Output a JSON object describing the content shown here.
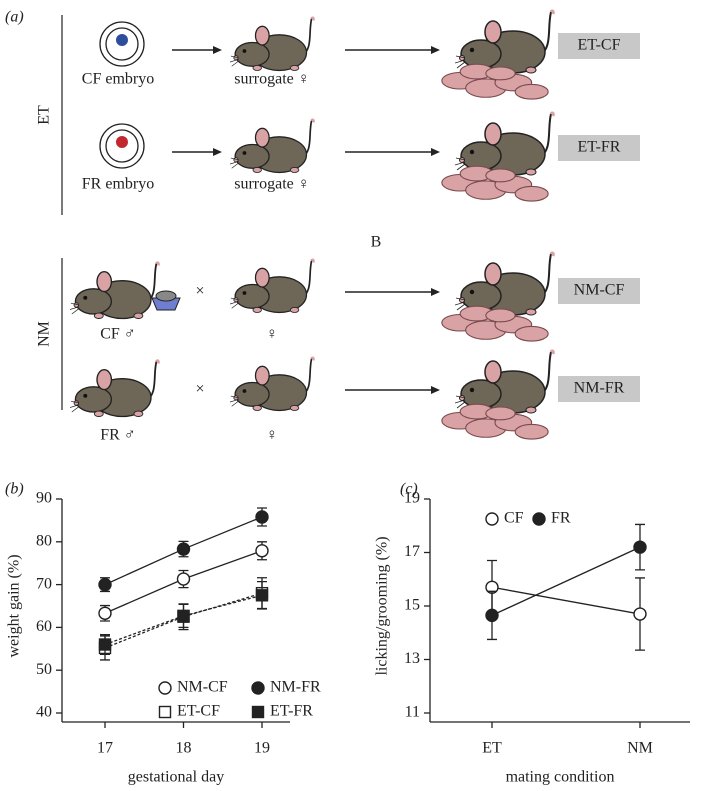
{
  "panel_labels": [
    "(a)",
    "(b)",
    "(c)"
  ],
  "diagram": {
    "note": "B",
    "partner_color": "#2d4f9b",
    "groups": [
      {
        "label": "ET",
        "rows": [
          {
            "source": "CF embryo",
            "color": "#2d4f9b",
            "partner": "surrogate ♀",
            "outcome": "ET-CF"
          },
          {
            "source": "FR embryo",
            "color": "#c0282d",
            "partner": "surrogate ♀",
            "outcome": "ET-FR"
          }
        ]
      },
      {
        "label": "NM",
        "rows": [
          {
            "source": "CF ♂",
            "color": "#2d4f9b",
            "cross": "×",
            "partner": "♀",
            "outcome": "NM-CF"
          },
          {
            "source": "FR ♂",
            "color": "#c0282d",
            "cross": "×",
            "partner": "♀",
            "outcome": "NM-FR"
          }
        ]
      }
    ]
  },
  "chart_data": [
    {
      "type": "line",
      "x_label": "gestational day",
      "y_label": "weight gain (%)",
      "categories": [
        "17",
        "18",
        "19"
      ],
      "ylim": [
        40,
        90
      ],
      "yticks": [
        40,
        50,
        60,
        70,
        80,
        90
      ],
      "legend": "lower right",
      "series": [
        {
          "name": "NM-CF",
          "color": "#222222",
          "marker": "circle",
          "filled": false,
          "dashed": false,
          "values": [
            63.3,
            71.3,
            77.9
          ],
          "errors": [
            1.8,
            2.0,
            2.1
          ]
        },
        {
          "name": "NM-FR",
          "color": "#222222",
          "marker": "circle",
          "filled": true,
          "dashed": false,
          "values": [
            70.0,
            78.3,
            85.8
          ],
          "errors": [
            1.6,
            1.8,
            2.1
          ]
        },
        {
          "name": "ET-CF",
          "color": "#222222",
          "marker": "square",
          "filled": false,
          "dashed": true,
          "values": [
            55.2,
            62.5,
            68.0
          ],
          "errors": [
            2.8,
            3.0,
            3.6
          ]
        },
        {
          "name": "ET-FR",
          "color": "#222222",
          "marker": "square",
          "filled": true,
          "dashed": true,
          "values": [
            56.0,
            62.7,
            67.5
          ],
          "errors": [
            2.3,
            2.7,
            3.2
          ]
        }
      ]
    },
    {
      "type": "line",
      "x_label": "mating condition",
      "y_label": "licking/grooming (%)",
      "categories": [
        "ET",
        "NM"
      ],
      "ylim": [
        11,
        19
      ],
      "yticks": [
        11,
        13,
        15,
        17,
        19
      ],
      "legend": "upper left",
      "series": [
        {
          "name": "CF",
          "color": "#222222",
          "marker": "circle",
          "filled": false,
          "dashed": false,
          "values": [
            15.7,
            14.7
          ],
          "errors": [
            1.0,
            1.35
          ]
        },
        {
          "name": "FR",
          "color": "#222222",
          "marker": "circle",
          "filled": true,
          "dashed": false,
          "values": [
            14.65,
            17.2
          ],
          "errors": [
            0.9,
            0.85
          ]
        }
      ]
    }
  ]
}
